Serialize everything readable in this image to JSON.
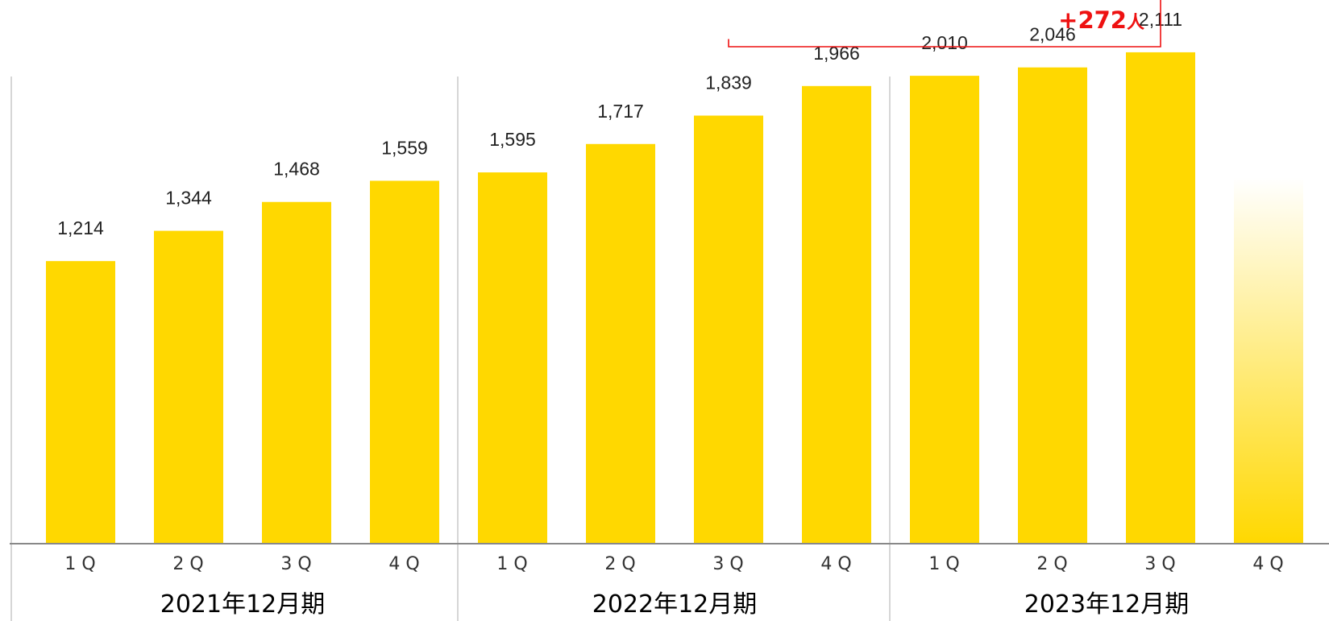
{
  "chart_data": {
    "type": "bar",
    "unit": "人",
    "colors": {
      "bar": "#ffd800",
      "axis": "#888888",
      "separator": "#c8c8c8",
      "annotation": "#ee1111"
    },
    "groups": [
      {
        "label": "2021年12月期",
        "quarters": [
          {
            "label": "1Q",
            "value": 1214
          },
          {
            "label": "2Q",
            "value": 1344
          },
          {
            "label": "3Q",
            "value": 1468
          },
          {
            "label": "4Q",
            "value": 1559
          }
        ]
      },
      {
        "label": "2022年12月期",
        "quarters": [
          {
            "label": "1Q",
            "value": 1595
          },
          {
            "label": "2Q",
            "value": 1717
          },
          {
            "label": "3Q",
            "value": 1839
          },
          {
            "label": "4Q",
            "value": 1966
          }
        ]
      },
      {
        "label": "2023年12月期",
        "quarters": [
          {
            "label": "1Q",
            "value": 2010
          },
          {
            "label": "2Q",
            "value": 2046
          },
          {
            "label": "3Q",
            "value": 2111
          },
          {
            "label": "4Q",
            "value": null,
            "placeholder": true
          }
        ]
      }
    ],
    "data_labels": [
      "1,214",
      "1,344",
      "1,468",
      "1,559",
      "1,595",
      "1,717",
      "1,839",
      "1,966",
      "2,010",
      "2,046",
      "2,111"
    ],
    "ylim": [
      0,
      2111
    ],
    "grid": false,
    "legend": "none",
    "annotation": {
      "text": "+272",
      "unit_text": "人",
      "from": {
        "group": 1,
        "quarter": 2
      },
      "to": {
        "group": 2,
        "quarter": 2
      },
      "change": 272
    }
  }
}
